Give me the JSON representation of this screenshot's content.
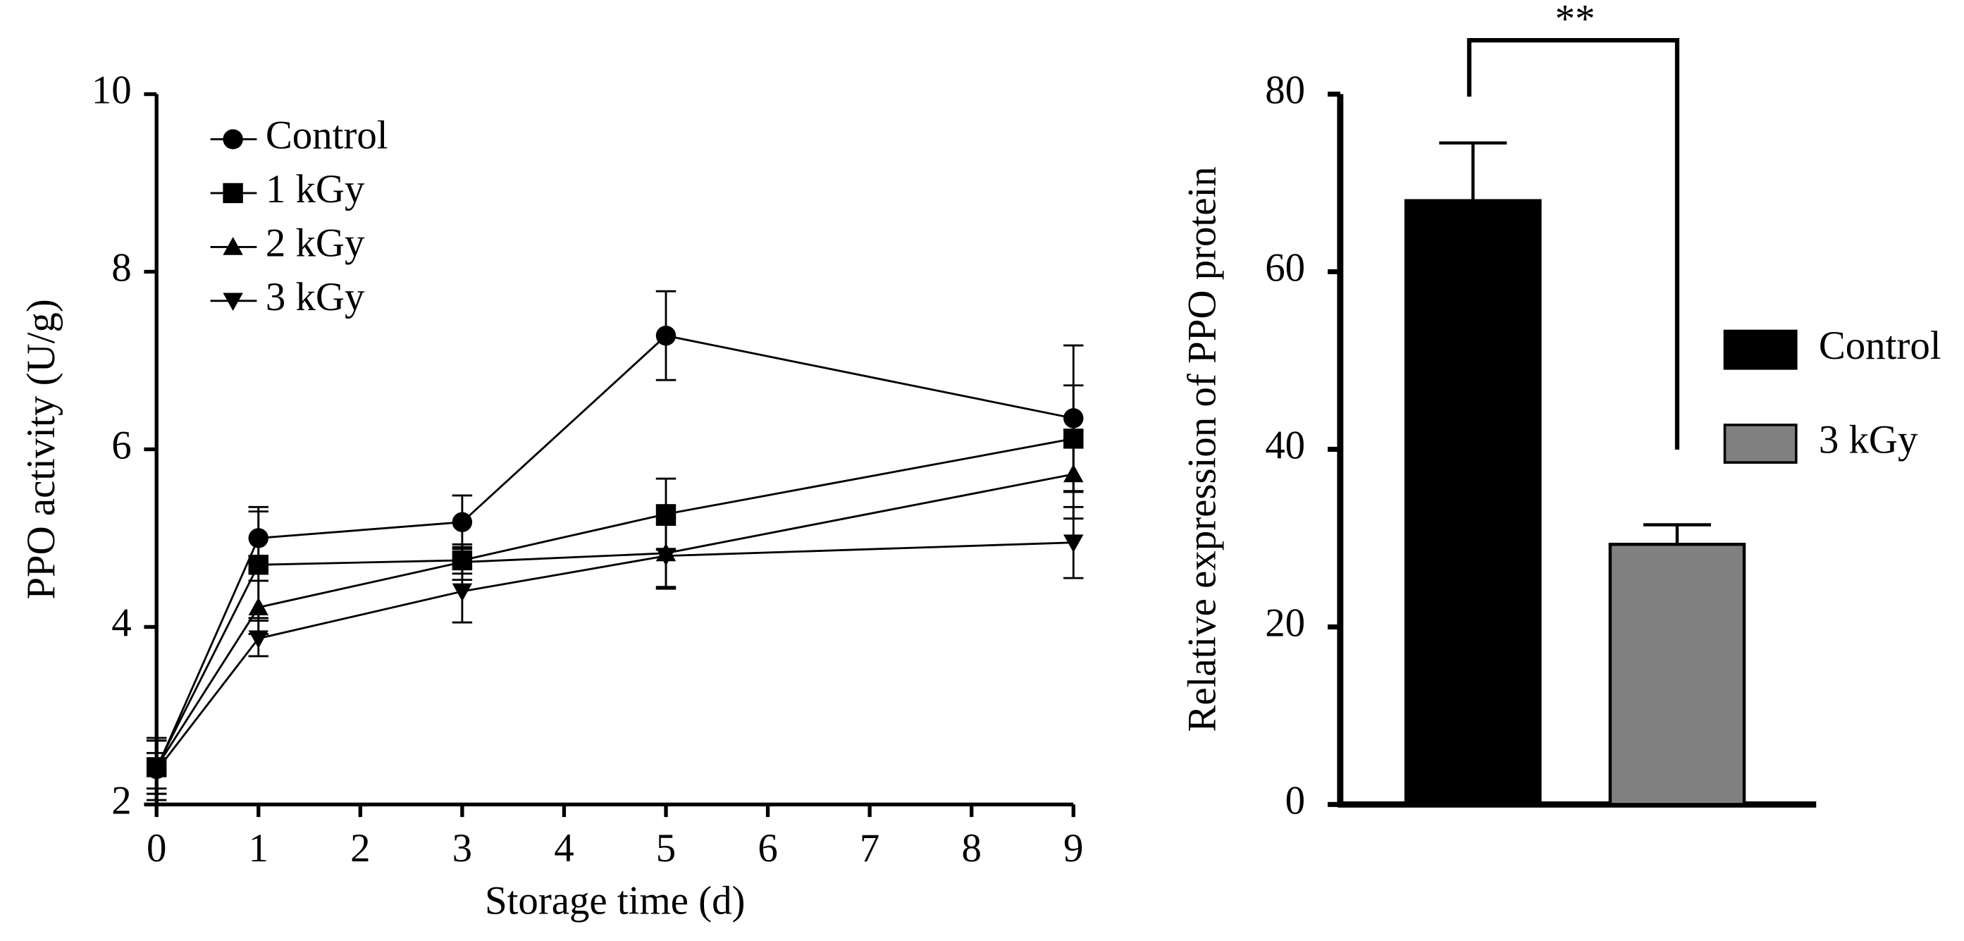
{
  "chart_data": [
    {
      "type": "line",
      "ylabel": "PPO activity (U/g)",
      "xlabel": "Storage time (d)",
      "x": [
        0,
        1,
        3,
        5,
        9
      ],
      "xlim": [
        0,
        9
      ],
      "xticks": [
        0,
        1,
        2,
        3,
        4,
        5,
        6,
        7,
        8,
        9
      ],
      "ylim": [
        2,
        10
      ],
      "yticks": [
        2,
        4,
        6,
        8,
        10
      ],
      "legend": "upper left",
      "series": [
        {
          "name": "Control",
          "color": "#000000",
          "marker": "circle",
          "values": [
            2.4,
            5.0,
            5.18,
            7.28,
            6.35
          ],
          "errors": [
            0.35,
            0.35,
            0.3,
            0.5,
            0.82
          ]
        },
        {
          "name": "1 kGy",
          "color": "#000000",
          "marker": "square",
          "values": [
            2.42,
            4.7,
            4.75,
            5.27,
            6.12
          ],
          "errors": [
            0.3,
            0.6,
            0.15,
            0.4,
            0.6
          ]
        },
        {
          "name": "2 kGy",
          "color": "#000000",
          "marker": "triangle-up",
          "values": [
            2.42,
            4.22,
            4.73,
            4.83,
            5.72
          ],
          "errors": [
            0.3,
            0.3,
            0.2,
            0.4,
            0.5
          ]
        },
        {
          "name": "3 kGy",
          "color": "#000000",
          "marker": "triangle-down",
          "values": [
            2.38,
            3.87,
            4.4,
            4.8,
            4.95
          ],
          "errors": [
            0.2,
            0.2,
            0.35,
            0.35,
            0.4
          ]
        }
      ]
    },
    {
      "type": "bar",
      "ylabel": "Relative expression of PPO protein",
      "ylim": [
        0,
        80
      ],
      "yticks": [
        0,
        20,
        40,
        60,
        80
      ],
      "legend": "right",
      "annotation": "**",
      "series": [
        {
          "name": "Control",
          "color": "#000000",
          "values": [
            68
          ],
          "errors": [
            6.5
          ]
        },
        {
          "name": "3 kGy",
          "color": "#808080",
          "values": [
            29.3
          ],
          "errors": [
            2.2
          ]
        }
      ]
    }
  ]
}
